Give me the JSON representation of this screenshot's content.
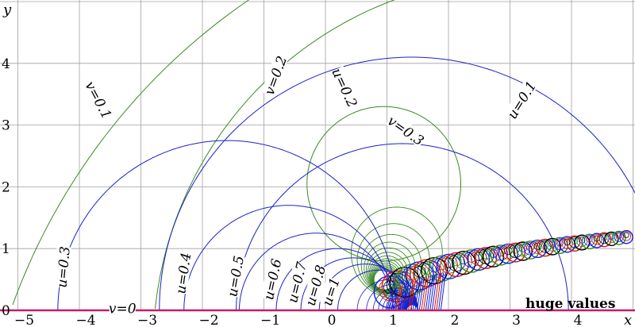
{
  "chart_data": {
    "type": "contour",
    "title": "",
    "xlabel": "x",
    "ylabel": "y",
    "xlim": [
      -5,
      5
    ],
    "ylim": [
      0,
      5
    ],
    "grid": true,
    "x_ticks": [
      "−5",
      "−4",
      "−3",
      "−2",
      "−1",
      "0",
      "1",
      "2",
      "3",
      "4"
    ],
    "y_ticks": [
      "0",
      "1",
      "2",
      "3",
      "4"
    ],
    "u_curves": [
      {
        "label": "u=0.1",
        "cx": 1.4,
        "r": 4.1,
        "label_at": [
          3.2,
          3.4
        ]
      },
      {
        "label": "u=0.2",
        "cx": 1.25,
        "r": 2.7,
        "label_at": [
          0.3,
          3.6
        ]
      },
      {
        "label": "u=0.3",
        "cx": -1.6,
        "r": 2.75,
        "label_at": [
          -4.25,
          0.7
        ]
      },
      {
        "label": "u=0.4",
        "cx": -0.6,
        "r": 1.7,
        "label_at": [
          -2.3,
          0.6
        ]
      },
      {
        "label": "u=0.5",
        "cx": -0.15,
        "r": 1.25,
        "label_at": [
          -1.45,
          0.55
        ]
      },
      {
        "label": "u=0.6",
        "cx": 0.2,
        "r": 1.0,
        "label_at": [
          -0.85,
          0.5
        ]
      },
      {
        "label": "u=0.7",
        "cx": 0.45,
        "r": 0.85,
        "label_at": [
          -0.45,
          0.45
        ]
      },
      {
        "label": "u=0.8",
        "cx": 0.65,
        "r": 0.75,
        "label_at": [
          -0.15,
          0.4
        ]
      },
      {
        "label": "u=1",
        "cx": 0.85,
        "r": 0.65,
        "label_at": [
          0.1,
          0.3
        ]
      }
    ],
    "v_curves": [
      {
        "label": "v=0.1",
        "cx": 4.5,
        "cy": -3.4,
        "r": 10.2,
        "label_at": [
          -3.7,
          3.4
        ]
      },
      {
        "label": "v=0.2",
        "cx": 3.2,
        "cy": -0.6,
        "r": 6.0,
        "label_at": [
          -0.8,
          3.8
        ]
      },
      {
        "label": "v=0.3",
        "cx": 0.95,
        "cy": 2.05,
        "r": 1.25,
        "label_at": [
          1.3,
          2.9
        ]
      }
    ],
    "baseline": {
      "label": "v=0",
      "y": 0
    },
    "fractal_region": {
      "x_from": 0.9,
      "x_to": 5.0,
      "note": "huge values"
    }
  },
  "colors": {
    "u": "#1a22c8",
    "v": "#3c8a22",
    "grid": "#a0a0a0",
    "baseline": "#c0206a",
    "dense_red": "#d01818",
    "dense_blue": "#1020e0",
    "dense_black": "#000000"
  }
}
